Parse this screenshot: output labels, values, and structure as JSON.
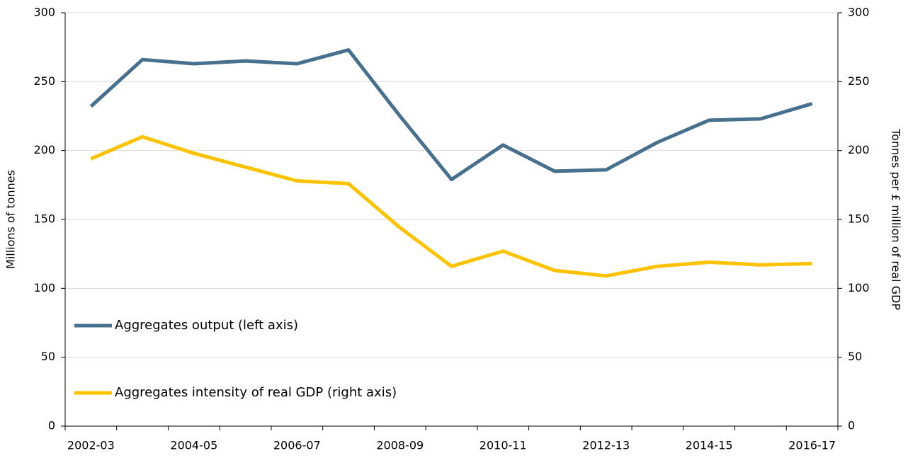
{
  "chart_data": {
    "type": "line",
    "categories": [
      "2002-03",
      null,
      "2004-05",
      null,
      "2006-07",
      null,
      "2008-09",
      null,
      "2010-11",
      null,
      "2012-13",
      null,
      "2014-15",
      null,
      "2016-17"
    ],
    "y_label": "Millions of tonnes",
    "y2_label": "Tonnes per £ million of real GDP",
    "ylim": [
      0,
      300
    ],
    "yticks": [
      0,
      50,
      100,
      150,
      200,
      250,
      300
    ],
    "y2lim": [
      0,
      300
    ],
    "y2ticks": [
      0,
      50,
      100,
      150,
      200,
      250,
      300
    ],
    "grid": true,
    "legend": "left",
    "series": [
      {
        "name": "Aggregates output (left axis)",
        "color": "#47708f",
        "values": [
          232,
          266,
          263,
          265,
          263,
          273,
          225,
          179,
          204,
          185,
          186,
          206,
          222,
          223,
          234
        ]
      },
      {
        "name": "Aggregates intensity of real GDP (right axis)",
        "color": "#fdc300",
        "axis": "y2",
        "values": [
          194,
          210,
          198,
          188,
          178,
          176,
          144,
          116,
          127,
          113,
          109,
          116,
          119,
          117,
          118
        ]
      }
    ]
  }
}
